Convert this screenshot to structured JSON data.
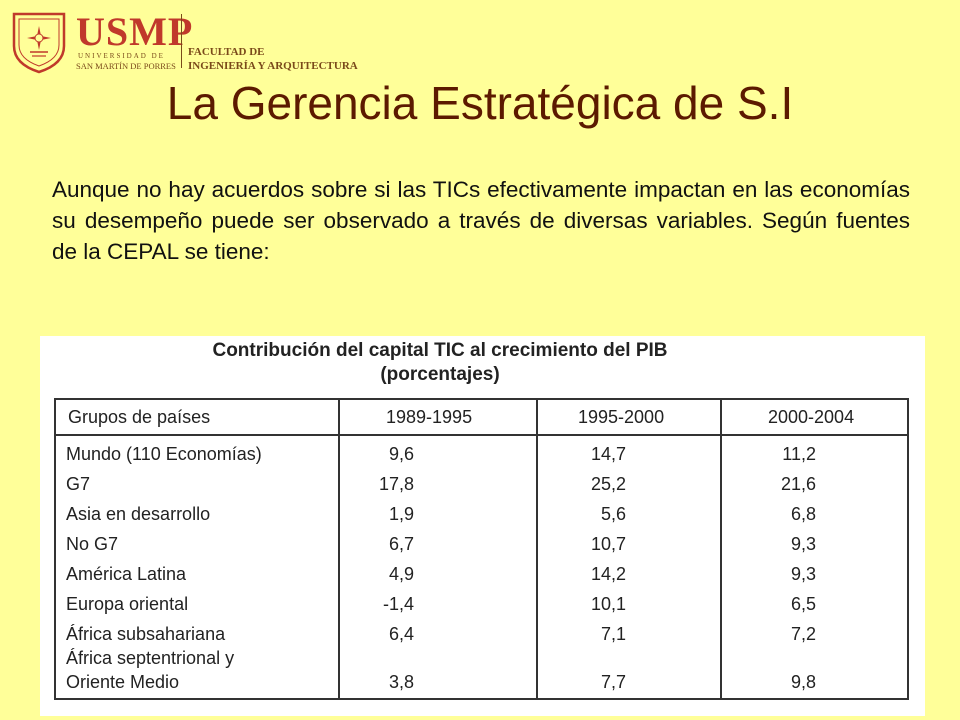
{
  "logo": {
    "name": "USMP",
    "sub1": "UNIVERSIDAD DE",
    "sub2": "SAN MARTÍN DE PORRES",
    "faculty_line1": "FACULTAD DE",
    "faculty_line2": "INGENIERÍA Y ARQUITECTURA"
  },
  "title": "La Gerencia Estratégica de S.I",
  "paragraph": "Aunque no hay acuerdos sobre si las TICs efectivamente impactan en las economías su desempeño puede ser observado a través de diversas variables. Según fuentes de la CEPAL se tiene:",
  "table": {
    "caption_line1": "Contribución del capital TIC al crecimiento del PIB",
    "caption_line2": "(porcentajes)",
    "headers": [
      "Grupos de países",
      "1989-1995",
      "1995-2000",
      "2000-2004"
    ],
    "rows": [
      {
        "group": "Mundo (110 Economías)",
        "v1": "9,6",
        "v2": "14,7",
        "v3": "11,2"
      },
      {
        "group": "G7",
        "v1": "17,8",
        "v2": "25,2",
        "v3": "21,6"
      },
      {
        "group": "Asia en desarrollo",
        "v1": "1,9",
        "v2": "5,6",
        "v3": "6,8"
      },
      {
        "group": "No G7",
        "v1": "6,7",
        "v2": "10,7",
        "v3": "9,3"
      },
      {
        "group": "América Latina",
        "v1": "4,9",
        "v2": "14,2",
        "v3": "9,3"
      },
      {
        "group": "Europa oriental",
        "v1": "-1,4",
        "v2": "10,1",
        "v3": "6,5"
      },
      {
        "group": "África subsahariana",
        "v1": "6,4",
        "v2": "7,1",
        "v3": "7,2"
      },
      {
        "group": "África septentrional y",
        "group2": "Oriente Medio",
        "v1": "3,8",
        "v2": "7,7",
        "v3": "9,8"
      }
    ]
  }
}
